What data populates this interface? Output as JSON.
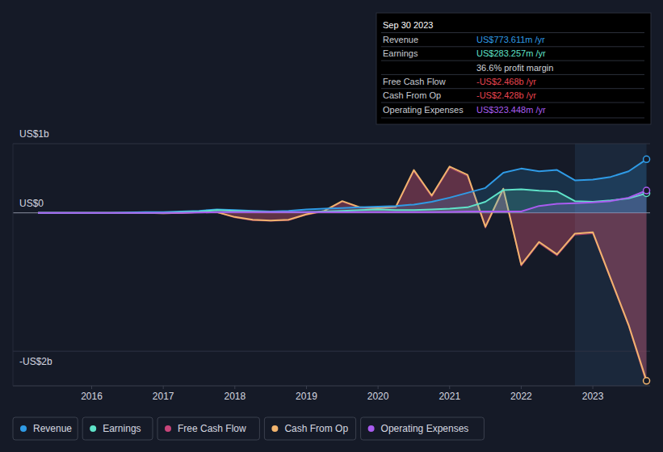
{
  "chart_data": {
    "type": "line",
    "x": [
      2015.25,
      2015.5,
      2015.75,
      2016,
      2016.25,
      2016.5,
      2016.75,
      2017,
      2017.25,
      2017.5,
      2017.75,
      2018,
      2018.25,
      2018.5,
      2018.75,
      2019,
      2019.25,
      2019.5,
      2019.75,
      2020,
      2020.25,
      2020.5,
      2020.75,
      2021,
      2021.25,
      2021.5,
      2021.75,
      2022,
      2022.25,
      2022.5,
      2022.75,
      2023,
      2023.25,
      2023.5,
      2023.75
    ],
    "series": [
      {
        "name": "Revenue",
        "color": "#2f9be6",
        "type": "area",
        "values": [
          0,
          0,
          0,
          0,
          0,
          0.005,
          0.01,
          0.01,
          0.02,
          0.03,
          0.05,
          0.04,
          0.03,
          0.02,
          0.03,
          0.05,
          0.06,
          0.07,
          0.08,
          0.09,
          0.1,
          0.12,
          0.16,
          0.22,
          0.29,
          0.36,
          0.58,
          0.64,
          0.6,
          0.62,
          0.47,
          0.48,
          0.52,
          0.6,
          0.774
        ]
      },
      {
        "name": "Earnings",
        "color": "#5fe3c9",
        "type": "area",
        "values": [
          0,
          0,
          0,
          0,
          0,
          0,
          0,
          0,
          0.01,
          0.02,
          0.04,
          0.03,
          0.02,
          0.01,
          0.01,
          0.01,
          0.02,
          0.03,
          0.04,
          0.05,
          0.04,
          0.04,
          0.05,
          0.06,
          0.08,
          0.16,
          0.33,
          0.34,
          0.32,
          0.31,
          0.17,
          0.16,
          0.18,
          0.21,
          0.283
        ]
      },
      {
        "name": "Free Cash Flow",
        "color": "#c8457a",
        "type": "area",
        "values": [
          0,
          0,
          0,
          0,
          0,
          0,
          0,
          -0.005,
          0,
          0.005,
          0.005,
          -0.07,
          -0.11,
          -0.12,
          -0.11,
          -0.03,
          0.02,
          0.16,
          0.07,
          0.06,
          0.08,
          0.6,
          0.23,
          0.65,
          0.53,
          -0.22,
          0.33,
          -0.77,
          -0.44,
          -0.62,
          -0.32,
          -0.3,
          -0.97,
          -1.64,
          -2.468
        ]
      },
      {
        "name": "Cash From Op",
        "color": "#f2b46e",
        "type": "line",
        "values": [
          0,
          0,
          0,
          0,
          0,
          0,
          0,
          -0.005,
          0,
          0.01,
          0.01,
          -0.06,
          -0.1,
          -0.11,
          -0.1,
          -0.02,
          0.03,
          0.17,
          0.08,
          0.07,
          0.09,
          0.62,
          0.25,
          0.67,
          0.55,
          -0.2,
          0.35,
          -0.75,
          -0.42,
          -0.6,
          -0.3,
          -0.28,
          -0.95,
          -1.62,
          -2.428
        ]
      },
      {
        "name": "Operating Expenses",
        "color": "#a95cf0",
        "type": "area",
        "values": [
          0,
          0,
          0,
          0,
          0,
          0,
          0,
          0,
          0,
          0.005,
          0.01,
          0.01,
          0.01,
          0.01,
          0.01,
          0.01,
          0.01,
          0.01,
          0.01,
          0.01,
          0.01,
          0.01,
          0.01,
          0.015,
          0.02,
          0.02,
          0.02,
          0.02,
          0.1,
          0.13,
          0.14,
          0.15,
          0.17,
          0.22,
          0.323
        ]
      }
    ],
    "xlim": [
      2014.9,
      2023.8
    ],
    "xticks": [
      2016,
      2017,
      2018,
      2019,
      2020,
      2021,
      2022,
      2023
    ],
    "ylim": [
      -2.5,
      1
    ],
    "yticks": [
      {
        "value": 1,
        "label": "US$1b"
      },
      {
        "value": 0,
        "label": "US$0"
      },
      {
        "value": -2,
        "label": "-US$2b"
      }
    ],
    "grid": true,
    "legend": "bottom",
    "highlight": {
      "x": [
        2022.75,
        2023.75
      ]
    },
    "tooltip": {
      "title": "Sep 30 2023",
      "rows": [
        {
          "label": "Revenue",
          "value": "US$773.611m /yr",
          "color": "#2f9be6"
        },
        {
          "label": "Earnings",
          "value": "US$283.257m /yr",
          "color": "#5fe3c9"
        },
        {
          "label": "",
          "value": "36.6% profit margin",
          "color": "#d0d3da"
        },
        {
          "label": "Free Cash Flow",
          "value": "-US$2.468b /yr",
          "color": "#e8444f"
        },
        {
          "label": "Cash From Op",
          "value": "-US$2.428b /yr",
          "color": "#e8444f"
        },
        {
          "label": "Operating Expenses",
          "value": "US$323.448m /yr",
          "color": "#a95cf0"
        }
      ]
    }
  }
}
